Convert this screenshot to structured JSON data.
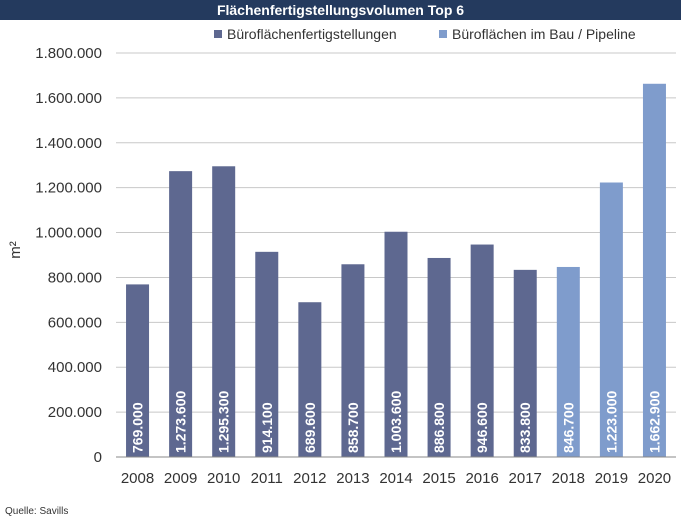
{
  "chart_data": {
    "type": "bar",
    "title": "Flächenfertigstellungsvolumen Top 6",
    "ylabel": "m²",
    "ylim": [
      0,
      1800000
    ],
    "yticks": [
      0,
      200000,
      400000,
      600000,
      800000,
      1000000,
      1200000,
      1400000,
      1600000,
      1800000
    ],
    "ytick_labels": [
      "0",
      "200.000",
      "400.000",
      "600.000",
      "800.000",
      "1.000.000",
      "1.200.000",
      "1.400.000",
      "1.600.000",
      "1.800.000"
    ],
    "categories": [
      "2008",
      "2009",
      "2010",
      "2011",
      "2012",
      "2013",
      "2014",
      "2015",
      "2016",
      "2017",
      "2018",
      "2019",
      "2020"
    ],
    "values": [
      769000,
      1273600,
      1295300,
      914100,
      689600,
      858700,
      1003600,
      886800,
      946600,
      833800,
      846700,
      1223000,
      1662900
    ],
    "value_labels": [
      "769.000",
      "1.273.600",
      "1.295.300",
      "914.100",
      "689.600",
      "858.700",
      "1.003.600",
      "886.800",
      "946.600",
      "833.800",
      "846.700",
      "1.223.000",
      "1.662.900"
    ],
    "series_index": [
      0,
      0,
      0,
      0,
      0,
      0,
      0,
      0,
      0,
      0,
      1,
      1,
      1
    ],
    "series": [
      {
        "name": "Büroflächenfertigstellungen",
        "color": "#5e6890"
      },
      {
        "name": "Büroflächen im Bau / Pipeline",
        "color": "#7f9ccc"
      }
    ],
    "grid": true,
    "legend": "top-right"
  },
  "source": "Quelle: Savills"
}
